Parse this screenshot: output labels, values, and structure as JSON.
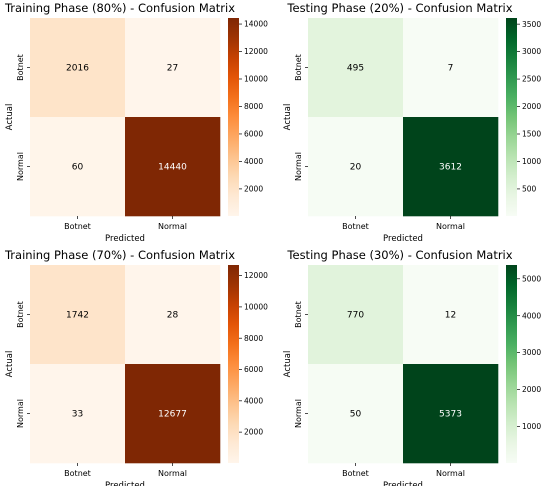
{
  "chart_data": [
    {
      "type": "heatmap",
      "title": "Training Phase (80%) - Confusion Matrix",
      "xlabel": "Predicted",
      "ylabel": "Actual",
      "x_categories": [
        "Botnet",
        "Normal"
      ],
      "y_categories": [
        "Botnet",
        "Normal"
      ],
      "values": [
        [
          2016,
          27
        ],
        [
          60,
          14440
        ]
      ],
      "colormap": "Oranges",
      "colorbar_range": [
        27,
        14440
      ],
      "colorbar_ticks": [
        2000,
        4000,
        6000,
        8000,
        10000,
        12000,
        14000
      ]
    },
    {
      "type": "heatmap",
      "title": "Testing Phase (20%) - Confusion Matrix",
      "xlabel": "Predicted",
      "ylabel": "Actual",
      "x_categories": [
        "Botnet",
        "Normal"
      ],
      "y_categories": [
        "Botnet",
        "Normal"
      ],
      "values": [
        [
          495,
          7
        ],
        [
          20,
          3612
        ]
      ],
      "colormap": "Greens",
      "colorbar_range": [
        7,
        3612
      ],
      "colorbar_ticks": [
        500,
        1000,
        1500,
        2000,
        2500,
        3000,
        3500
      ]
    },
    {
      "type": "heatmap",
      "title": "Training Phase (70%) - Confusion Matrix",
      "xlabel": "Predicted",
      "ylabel": "Actual",
      "x_categories": [
        "Botnet",
        "Normal"
      ],
      "y_categories": [
        "Botnet",
        "Normal"
      ],
      "values": [
        [
          1742,
          28
        ],
        [
          33,
          12677
        ]
      ],
      "colormap": "Oranges",
      "colorbar_range": [
        28,
        12677
      ],
      "colorbar_ticks": [
        2000,
        4000,
        6000,
        8000,
        10000,
        12000
      ]
    },
    {
      "type": "heatmap",
      "title": "Testing Phase (30%) - Confusion Matrix",
      "xlabel": "Predicted",
      "ylabel": "Actual",
      "x_categories": [
        "Botnet",
        "Normal"
      ],
      "y_categories": [
        "Botnet",
        "Normal"
      ],
      "values": [
        [
          770,
          12
        ],
        [
          50,
          5373
        ]
      ],
      "colormap": "Greens",
      "colorbar_range": [
        12,
        5373
      ],
      "colorbar_ticks": [
        1000,
        2000,
        3000,
        4000,
        5000
      ]
    }
  ]
}
